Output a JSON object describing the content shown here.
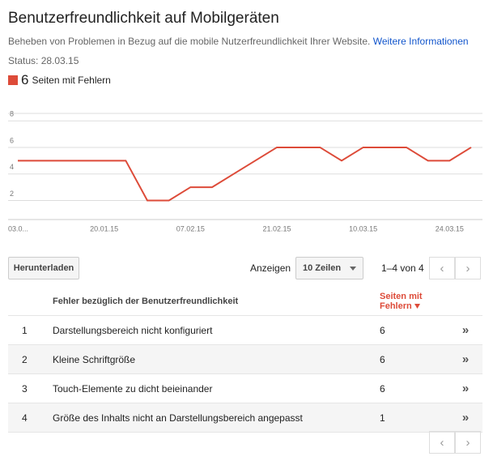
{
  "header": {
    "title": "Benutzerfreundlichkeit auf Mobilgeräten",
    "description": "Beheben von Problemen in Bezug auf die mobile Nutzerfreundlichkeit Ihrer Website.",
    "link": "Weitere Informationen",
    "status": "Status: 28.03.15"
  },
  "legend_count": "6",
  "chart_data": {
    "type": "line",
    "categories": [
      "03.0...",
      null,
      null,
      null,
      "20.01.15",
      null,
      null,
      null,
      "07.02.15",
      null,
      null,
      null,
      "21.02.15",
      null,
      null,
      null,
      "10.03.15",
      null,
      null,
      null,
      "24.03.15",
      null
    ],
    "series": [
      {
        "name": "Seiten mit Fehlern",
        "color": "#dd4b39",
        "values": [
          5,
          5,
          5,
          5,
          5,
          5,
          2,
          2,
          3,
          3,
          4,
          5,
          6,
          6,
          6,
          5,
          6,
          6,
          6,
          5,
          5,
          6
        ]
      }
    ],
    "ylim": [
      0.5,
      8.5
    ],
    "yticks": [
      2,
      4,
      6,
      8
    ],
    "grid": true
  },
  "controls": {
    "download": "Herunterladen",
    "show": "Anzeigen",
    "rows_select": "10 Zeilen",
    "range": "1–4 von 4"
  },
  "table": {
    "columns": [
      "Fehler bezüglich der Benutzerfreundlichkeit",
      "Seiten mit Fehlern"
    ],
    "rows": [
      [
        "1",
        "Darstellungsbereich nicht konfiguriert",
        "6"
      ],
      [
        "2",
        "Kleine Schriftgröße",
        "6"
      ],
      [
        "3",
        "Touch-Elemente zu dicht beieinander",
        "6"
      ],
      [
        "4",
        "Größe des Inhalts nicht an Darstellungsbereich angepasst",
        "1"
      ]
    ]
  }
}
